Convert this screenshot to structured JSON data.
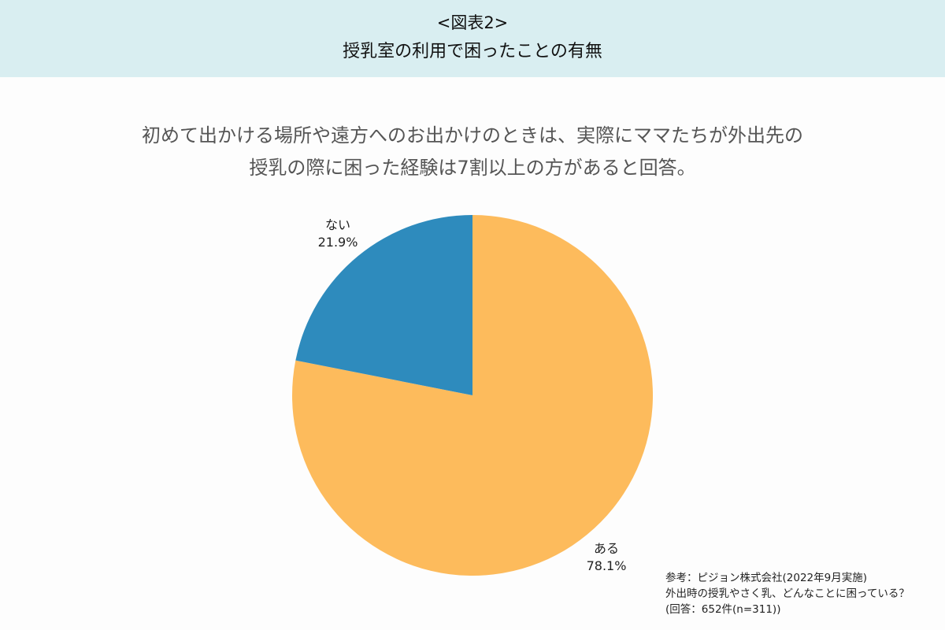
{
  "header": {
    "figure_label": "<図表2>",
    "title": "授乳室の利用で困ったことの有無"
  },
  "subtitle": {
    "line1": "初めて出かける場所や遠方へのお出かけのときは、実際にママたちが外出先の",
    "line2": "授乳の際に困った経験は7割以上の方があると回答。"
  },
  "chart_data": {
    "type": "pie",
    "title": "授乳室の利用で困ったことの有無",
    "start_angle_deg": 90,
    "direction": "clockwise",
    "slices": [
      {
        "label": "ある",
        "value": 78.1,
        "display": "78.1%",
        "color": "#fdbb5c"
      },
      {
        "label": "ない",
        "value": 21.9,
        "display": "21.9%",
        "color": "#2e8bbd"
      }
    ]
  },
  "source": {
    "line1": "参考：ピジョン株式会社(2022年9月実施)",
    "line2": "外出時の授乳やさく乳、どんなことに困っている？",
    "line3": "(回答：652件(n=311))"
  }
}
